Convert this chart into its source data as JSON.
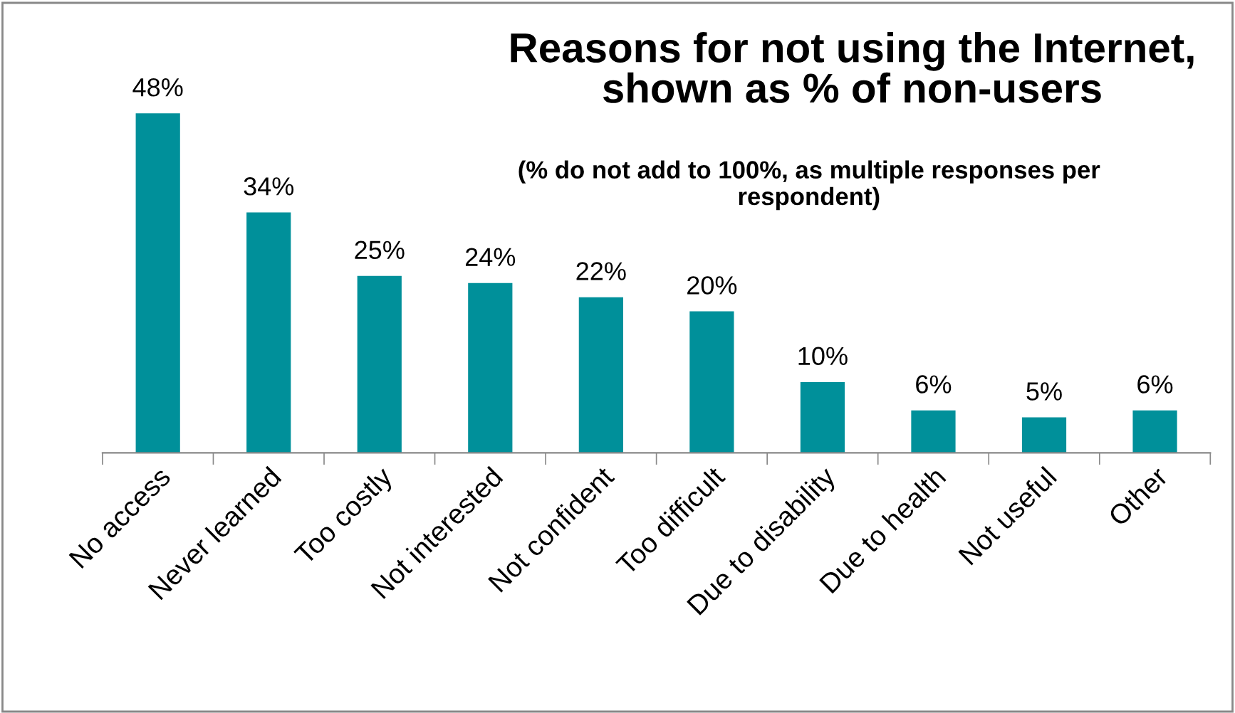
{
  "chart_data": {
    "type": "bar",
    "title": "Reasons for not using the Internet,\nshown as % of non-users",
    "subtitle": "(% do not add to 100%, as multiple responses per\nrespondent)",
    "categories": [
      "No access",
      "Never learned",
      "Too costly",
      "Not interested",
      "Not confident",
      "Too difficult",
      "Due to disability",
      "Due to health",
      "Not useful",
      "Other"
    ],
    "values": [
      48,
      34,
      25,
      24,
      22,
      20,
      10,
      6,
      5,
      6
    ],
    "value_labels": [
      "48%",
      "34%",
      "25%",
      "24%",
      "22%",
      "20%",
      "10%",
      "6%",
      "5%",
      "6%"
    ],
    "color": "#00909a",
    "grid": false,
    "legend": false
  }
}
